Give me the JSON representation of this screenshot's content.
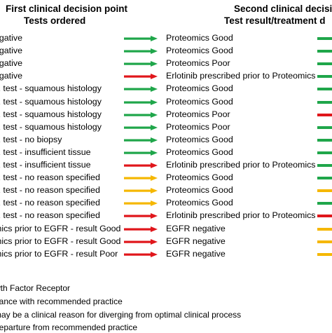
{
  "header": {
    "left_line1": "First clinical decision point",
    "left_line2": "Tests ordered",
    "right_line1": "Second clinical decisi",
    "right_line2": "Test result/treatment d"
  },
  "colors": {
    "green": "#1fa64a",
    "yellow": "#f5b700",
    "red": "#e0161b"
  },
  "rows": [
    {
      "left": "egative",
      "arrow": "green",
      "middle": "Proteomics Good",
      "right": "green"
    },
    {
      "left": "egative",
      "arrow": "green",
      "middle": "Proteomics Good",
      "right": "green"
    },
    {
      "left": "egative",
      "arrow": "green",
      "middle": "Proteomics Poor",
      "right": "green"
    },
    {
      "left": "egative",
      "arrow": "red",
      "middle": "Erlotinib prescribed prior to Proteomics",
      "right": "green"
    },
    {
      "left": "R test - squamous histology",
      "arrow": "green",
      "middle": "Proteomics Good",
      "right": "green"
    },
    {
      "left": "R test - squamous histology",
      "arrow": "green",
      "middle": "Proteomics Good",
      "right": "green"
    },
    {
      "left": "R test - squamous histology",
      "arrow": "green",
      "middle": "Proteomics Poor",
      "right": "red"
    },
    {
      "left": "R test - squamous histology",
      "arrow": "green",
      "middle": "Proteomics Poor",
      "right": "green"
    },
    {
      "left": "R test - no biopsy",
      "arrow": "green",
      "middle": "Proteomics Good",
      "right": "green"
    },
    {
      "left": "R test - insufficient tissue",
      "arrow": "green",
      "middle": "Proteomics Good",
      "right": "green"
    },
    {
      "left": "R test - insufficient tissue",
      "arrow": "red",
      "middle": "Erlotinib prescribed prior to Proteomics",
      "right": "green"
    },
    {
      "left": "R test - no reason specified",
      "arrow": "yellow",
      "middle": "Proteomics Good",
      "right": "green"
    },
    {
      "left": "R test - no reason specified",
      "arrow": "yellow",
      "middle": "Proteomics Good",
      "right": "yellow"
    },
    {
      "left": "R test - no reason specified",
      "arrow": "yellow",
      "middle": "Proteomics Good",
      "right": "green"
    },
    {
      "left": "R test - no reason specified",
      "arrow": "red",
      "middle": "Erlotinib prescribed prior to Proteomics",
      "right": "red"
    },
    {
      "left": "mics prior to EGFR - result Good",
      "arrow": "red",
      "middle": "EGFR negative",
      "right": "yellow"
    },
    {
      "left": "mics prior to EGFR - result Good",
      "arrow": "red",
      "middle": "EGFR negative",
      "right": "yellow"
    },
    {
      "left": "mics prior to EGFR - result Poor",
      "arrow": "red",
      "middle": "EGFR negative",
      "right": "yellow"
    }
  ],
  "legend": [
    "wth Factor Receptor",
    "dance with recommended practice",
    "may be a clinical reason for diverging from optimal clinical process",
    "departure from recommended practice"
  ]
}
